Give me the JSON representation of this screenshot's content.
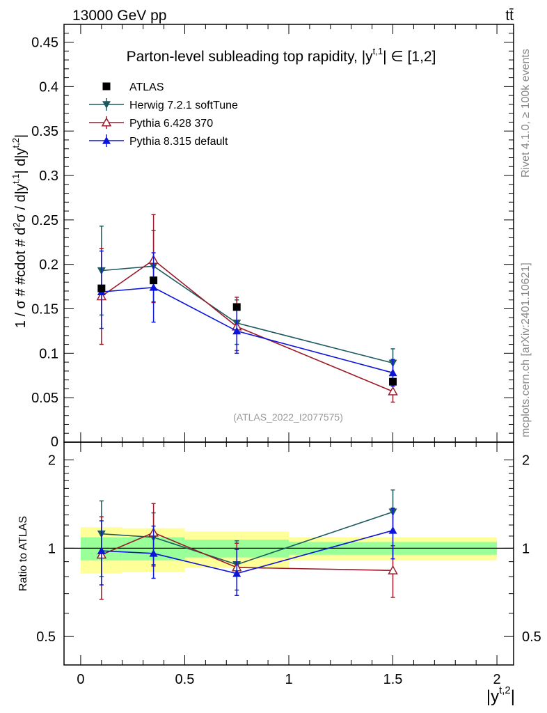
{
  "header": {
    "left": "13000 GeV pp",
    "right": "tt̄",
    "side_top": "Rivet 4.1.0, ≥ 100k events",
    "side_bottom": "mcplots.cern.ch [arXiv:2401.10621]"
  },
  "chart_data": {
    "type": "line",
    "title": "Parton-level subleading top rapidity, |y",
    "title_sup": "t,1",
    "title_tail": "| ∈ [1,2]",
    "watermark": "(ATLAS_2022_I2077575)",
    "main_ylabel": "1 / σ # #cdot # d²σ / d|y^{t,1}| d|y^{t,2}|",
    "ratio_ylabel": "Ratio to ATLAS",
    "xlabel": "|y",
    "xlabel_sup": "t,2",
    "xlabel_tail": "|",
    "xlim": [
      -0.08,
      2.08
    ],
    "main_ylim": [
      0,
      0.47
    ],
    "ratio_ylim": [
      0.4,
      2.3
    ],
    "main_yticks": [
      {
        "v": 0.05,
        "label": "0.05"
      },
      {
        "v": 0.1,
        "label": "0.1"
      },
      {
        "v": 0.15,
        "label": "0.15"
      },
      {
        "v": 0.2,
        "label": "0.2"
      },
      {
        "v": 0.25,
        "label": "0.25"
      },
      {
        "v": 0.3,
        "label": "0.3"
      },
      {
        "v": 0.35,
        "label": "0.35"
      },
      {
        "v": 0.4,
        "label": "0.4"
      },
      {
        "v": 0.45,
        "label": "0.45"
      }
    ],
    "main_y_zero_label": "0",
    "ratio_yticks": [
      {
        "v": 0.5,
        "label": "0.5"
      },
      {
        "v": 1,
        "label": "1"
      },
      {
        "v": 2,
        "label": "2"
      }
    ],
    "xticks": [
      {
        "v": 0,
        "label": "0"
      },
      {
        "v": 0.5,
        "label": "0.5"
      },
      {
        "v": 1,
        "label": "1"
      },
      {
        "v": 1.5,
        "label": "1.5"
      },
      {
        "v": 2,
        "label": "2"
      }
    ],
    "bins": [
      [
        0,
        0.2
      ],
      [
        0.2,
        0.5
      ],
      [
        0.5,
        1.0
      ],
      [
        1.0,
        2.0
      ]
    ],
    "x": [
      0.1,
      0.35,
      0.75,
      1.5
    ],
    "atlas": {
      "name": "ATLAS",
      "values": [
        0.173,
        0.182,
        0.152,
        0.068
      ],
      "band_inner": [
        [
          0.91,
          1.09
        ],
        [
          0.91,
          1.09
        ],
        [
          0.93,
          1.07
        ],
        [
          0.95,
          1.05
        ]
      ],
      "band_outer": [
        [
          0.82,
          1.18
        ],
        [
          0.83,
          1.17
        ],
        [
          0.86,
          1.14
        ],
        [
          0.91,
          1.09
        ]
      ]
    },
    "series": [
      {
        "name": "Herwig 7.2.1 softTune",
        "color": "#1d5a5f",
        "marker": "triangle-down",
        "values": [
          0.193,
          0.198,
          0.134,
          0.089
        ],
        "err_lo": [
          0.143,
          0.158,
          0.11,
          0.078
        ],
        "err_hi": [
          0.243,
          0.238,
          0.16,
          0.105
        ],
        "ratio": [
          1.12,
          1.09,
          0.88,
          1.33
        ],
        "ratio_lo": [
          0.8,
          0.88,
          0.72,
          1.14
        ],
        "ratio_hi": [
          1.45,
          1.32,
          1.06,
          1.58
        ]
      },
      {
        "name": "Pythia 6.428 370",
        "color": "#9a1a2a",
        "marker": "triangle-open",
        "values": [
          0.164,
          0.205,
          0.13,
          0.057
        ],
        "err_lo": [
          0.11,
          0.157,
          0.103,
          0.045
        ],
        "err_hi": [
          0.218,
          0.256,
          0.163,
          0.069
        ],
        "ratio": [
          0.95,
          1.13,
          0.86,
          0.84
        ],
        "ratio_lo": [
          0.67,
          0.87,
          0.69,
          0.68
        ],
        "ratio_hi": [
          1.28,
          1.42,
          1.04,
          1.02
        ]
      },
      {
        "name": "Pythia 8.315 default",
        "color": "#0b14d8",
        "marker": "triangle-up",
        "values": [
          0.169,
          0.174,
          0.125,
          0.078
        ],
        "err_lo": [
          0.128,
          0.135,
          0.1,
          0.063
        ],
        "err_hi": [
          0.215,
          0.213,
          0.15,
          0.093
        ],
        "ratio": [
          0.98,
          0.96,
          0.82,
          1.15
        ],
        "ratio_lo": [
          0.75,
          0.79,
          0.69,
          0.92
        ],
        "ratio_hi": [
          1.24,
          1.19,
          0.99,
          1.37
        ]
      }
    ]
  }
}
